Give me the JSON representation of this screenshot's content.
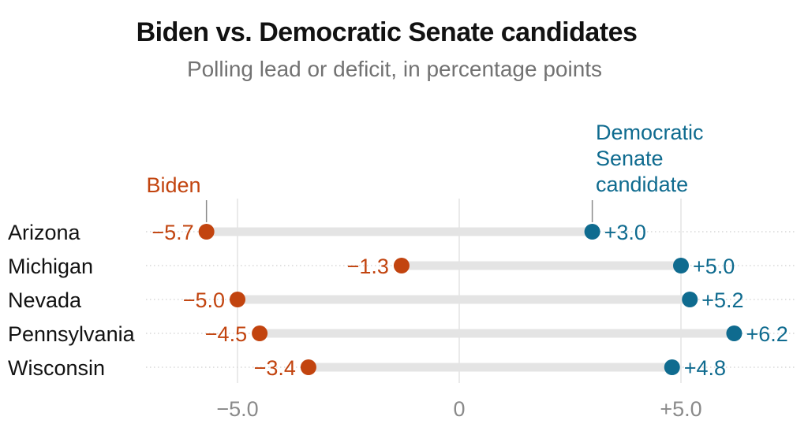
{
  "chart_data": {
    "type": "dot_plot",
    "title": "Biden vs. Democratic Senate candidates",
    "subtitle": "Polling lead or deficit, in percentage points",
    "categories": [
      "Arizona",
      "Michigan",
      "Nevada",
      "Pennsylvania",
      "Wisconsin"
    ],
    "series": [
      {
        "name": "Biden",
        "color": "#c2440f",
        "values": [
          -5.7,
          -1.3,
          -5.0,
          -4.5,
          -3.4
        ],
        "labels": [
          "−5.7",
          "−1.3",
          "−5.0",
          "−4.5",
          "−3.4"
        ]
      },
      {
        "name": "Democratic Senate candidate",
        "name_lines": [
          "Democratic",
          "Senate",
          "candidate"
        ],
        "color": "#0f6b8f",
        "values": [
          3.0,
          5.0,
          5.2,
          6.2,
          4.8
        ],
        "labels": [
          "+3.0",
          "+5.0",
          "+5.2",
          "+6.2",
          "+4.8"
        ]
      }
    ],
    "xticks": [
      {
        "value": -5.0,
        "label": "−5.0"
      },
      {
        "value": 0,
        "label": "0"
      },
      {
        "value": 5.0,
        "label": "+5.0"
      }
    ],
    "xlim": [
      -8.0,
      7.5
    ],
    "grid": true,
    "legend": "direct labels above the first row"
  }
}
